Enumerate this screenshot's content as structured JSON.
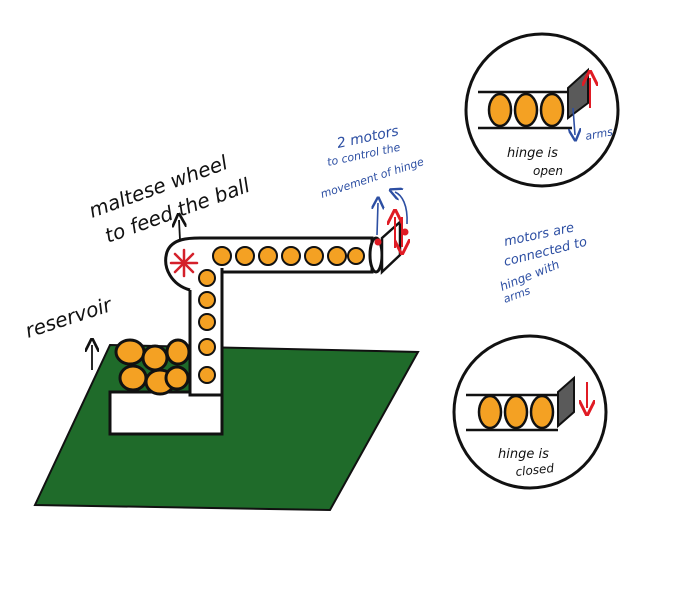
{
  "labels": {
    "maltese_line1": "maltese wheel",
    "maltese_line2": "to feed the ball",
    "reservoir": "reservoir",
    "motors_line1": "2 motors",
    "motors_line2": "to control the",
    "motors_line3": "movement of hinge",
    "connected_line1": "motors are",
    "connected_line2": "connected to",
    "connected_line3": "hinge with",
    "connected_line4": "arms",
    "arms": "arms",
    "open_line1": "hinge is",
    "open_line2": "open",
    "closed_line1": "hinge is",
    "closed_line2": "closed"
  },
  "colors": {
    "ground": "#1f6b2a",
    "ball": "#f4a123",
    "outline": "#111111",
    "hinge_gray": "#5a5a5a",
    "arrow_red": "#e01b24",
    "note_blue": "#2d4fa3",
    "wheel_red": "#d4202a"
  },
  "icons": {
    "maltese_wheel": "red-asterisk-icon",
    "arrows": "arrow-icon"
  }
}
